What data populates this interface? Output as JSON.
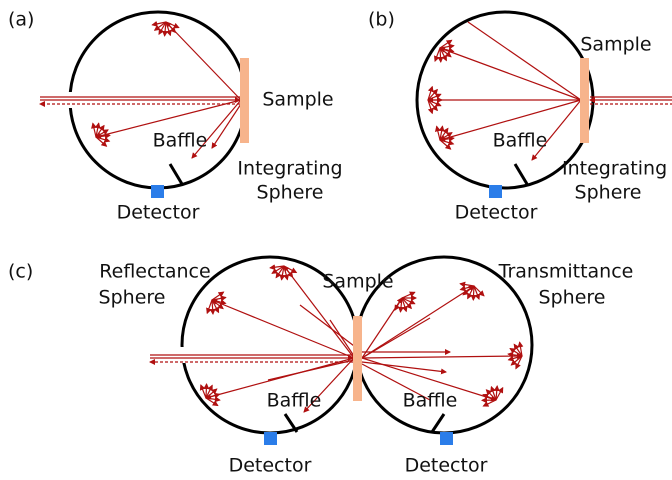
{
  "panels": [
    {
      "label": "(a)",
      "sample": "Sample",
      "baffle": "Baffle",
      "sphere_label": [
        "Integrating",
        "Sphere"
      ],
      "detector": "Detector"
    },
    {
      "label": "(b)",
      "sample": "Sample",
      "baffle": "Baffle",
      "sphere_label": [
        "Integrating",
        "Sphere"
      ],
      "detector": "Detector"
    },
    {
      "label": "(c)",
      "sample": "Sample",
      "reflectance_sphere": [
        "Reflectance",
        "Sphere"
      ],
      "transmittance_sphere": [
        "Transmittance",
        "Sphere"
      ],
      "baffles": [
        "Baffle",
        "Baffle"
      ],
      "detectors": [
        "Detector",
        "Detector"
      ]
    }
  ]
}
